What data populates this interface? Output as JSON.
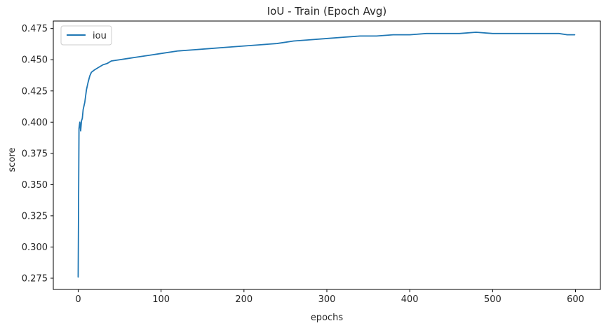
{
  "chart_data": {
    "type": "line",
    "title": "IoU - Train (Epoch Avg)",
    "xlabel": "epochs",
    "ylabel": "score",
    "xlim": [
      -30,
      630
    ],
    "ylim": [
      0.266,
      0.481
    ],
    "xticks": [
      0,
      100,
      200,
      300,
      400,
      500,
      600
    ],
    "yticks": [
      0.275,
      0.3,
      0.325,
      0.35,
      0.375,
      0.4,
      0.425,
      0.45,
      0.475
    ],
    "xtick_labels": [
      "0",
      "100",
      "200",
      "300",
      "400",
      "500",
      "600"
    ],
    "ytick_labels": [
      "0.275",
      "0.300",
      "0.325",
      "0.350",
      "0.375",
      "0.400",
      "0.425",
      "0.450",
      "0.475"
    ],
    "grid": false,
    "legend_position": "top-left",
    "series": [
      {
        "name": "iou",
        "color": "#1f77b4",
        "points": [
          [
            0,
            0.276
          ],
          [
            1,
            0.395
          ],
          [
            2,
            0.4
          ],
          [
            3,
            0.393
          ],
          [
            4,
            0.401
          ],
          [
            5,
            0.403
          ],
          [
            6,
            0.41
          ],
          [
            8,
            0.416
          ],
          [
            10,
            0.426
          ],
          [
            12,
            0.432
          ],
          [
            14,
            0.437
          ],
          [
            16,
            0.44
          ],
          [
            18,
            0.441
          ],
          [
            20,
            0.442
          ],
          [
            25,
            0.444
          ],
          [
            30,
            0.446
          ],
          [
            35,
            0.447
          ],
          [
            40,
            0.449
          ],
          [
            50,
            0.45
          ],
          [
            60,
            0.451
          ],
          [
            70,
            0.452
          ],
          [
            80,
            0.453
          ],
          [
            90,
            0.454
          ],
          [
            100,
            0.455
          ],
          [
            120,
            0.457
          ],
          [
            140,
            0.458
          ],
          [
            160,
            0.459
          ],
          [
            180,
            0.46
          ],
          [
            200,
            0.461
          ],
          [
            220,
            0.462
          ],
          [
            240,
            0.463
          ],
          [
            260,
            0.465
          ],
          [
            280,
            0.466
          ],
          [
            300,
            0.467
          ],
          [
            320,
            0.468
          ],
          [
            340,
            0.469
          ],
          [
            360,
            0.469
          ],
          [
            380,
            0.47
          ],
          [
            400,
            0.47
          ],
          [
            420,
            0.471
          ],
          [
            440,
            0.471
          ],
          [
            460,
            0.471
          ],
          [
            480,
            0.472
          ],
          [
            500,
            0.471
          ],
          [
            520,
            0.471
          ],
          [
            540,
            0.471
          ],
          [
            560,
            0.471
          ],
          [
            580,
            0.471
          ],
          [
            590,
            0.47
          ],
          [
            599,
            0.47
          ]
        ]
      }
    ]
  }
}
